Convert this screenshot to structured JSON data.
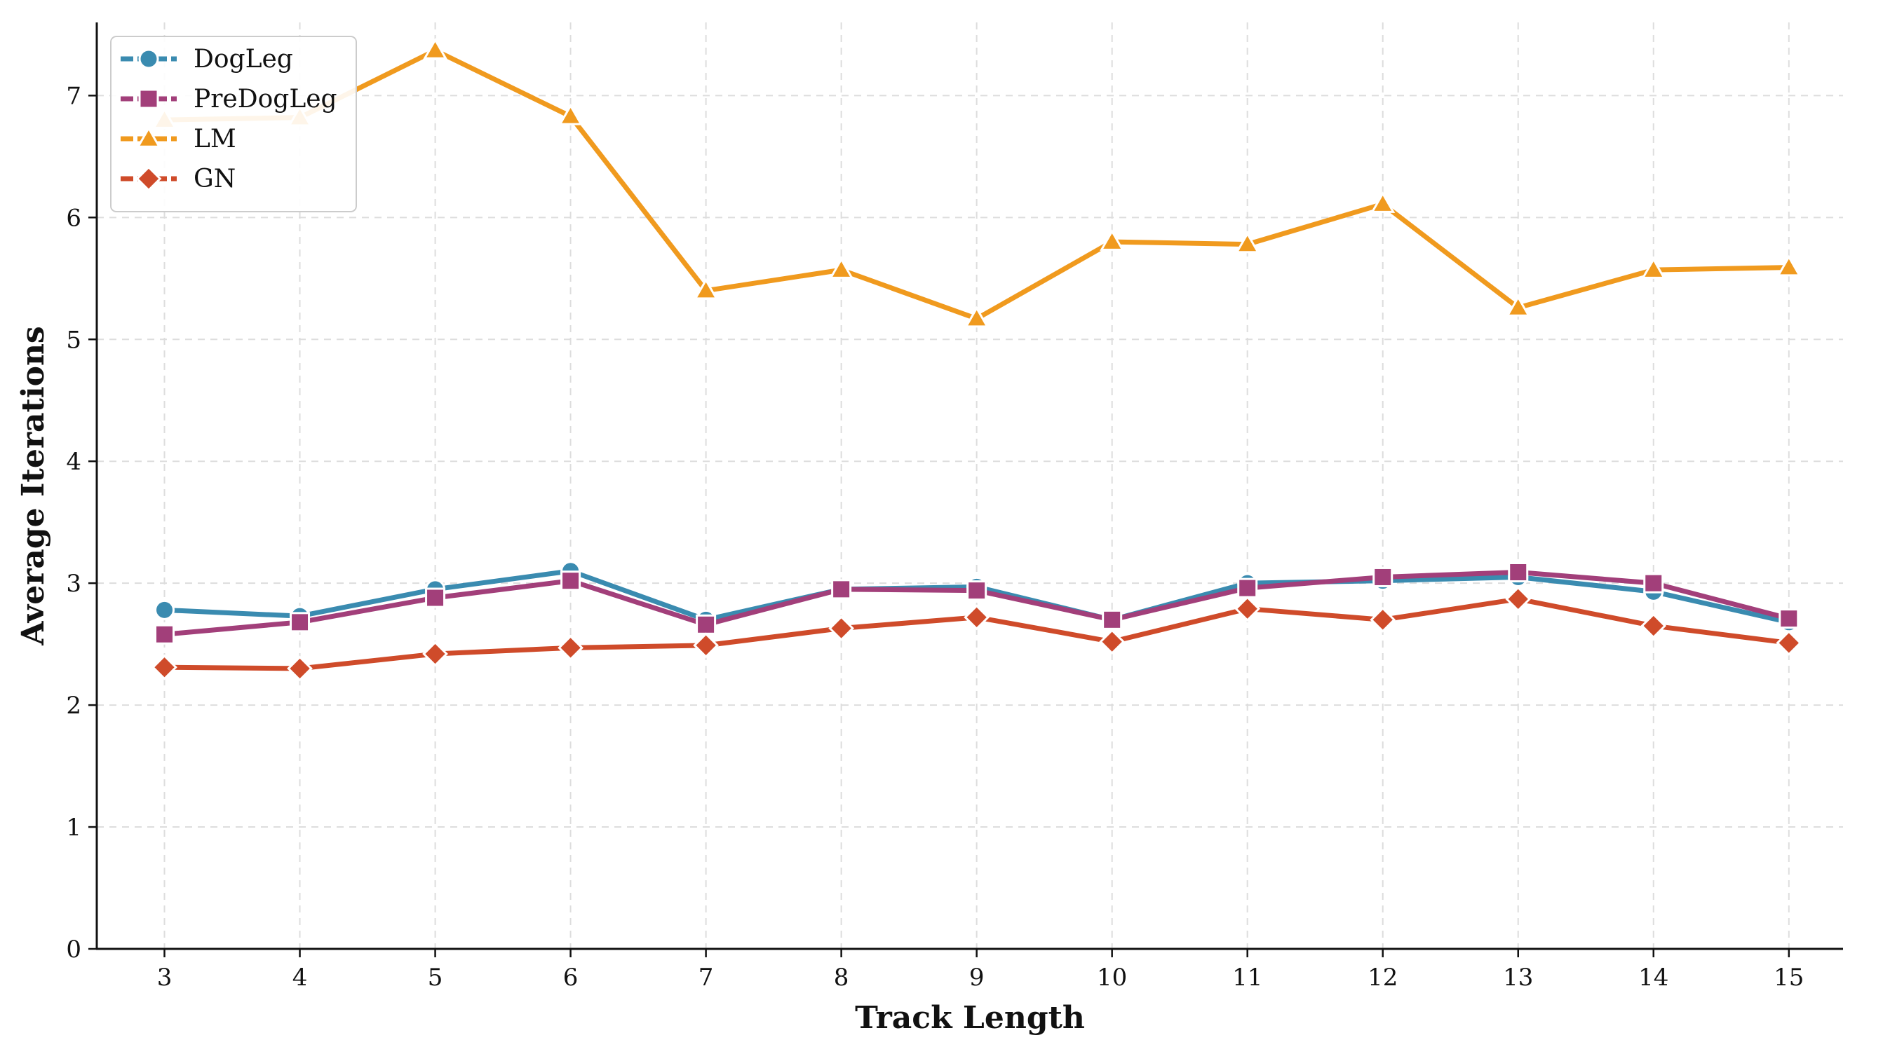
{
  "chart_data": {
    "type": "line",
    "title": "",
    "xlabel": "Track Length",
    "ylabel": "Average Iterations",
    "x": [
      3,
      4,
      5,
      6,
      7,
      8,
      9,
      10,
      11,
      12,
      13,
      14,
      15
    ],
    "xlim": [
      2.5,
      15.4
    ],
    "ylim": [
      0,
      7.6
    ],
    "yticks": [
      0,
      1,
      2,
      3,
      4,
      5,
      6,
      7
    ],
    "grid": true,
    "legend_position": "top-left",
    "series": [
      {
        "name": "DogLeg",
        "color": "#3a8bb0",
        "marker": "circle",
        "values": [
          2.78,
          2.73,
          2.95,
          3.1,
          2.7,
          2.95,
          2.97,
          2.7,
          3.0,
          3.02,
          3.05,
          2.93,
          2.68
        ]
      },
      {
        "name": "PreDogLeg",
        "color": "#a23f7a",
        "marker": "square",
        "values": [
          2.58,
          2.68,
          2.88,
          3.02,
          2.66,
          2.95,
          2.94,
          2.7,
          2.96,
          3.05,
          3.09,
          3.0,
          2.71
        ]
      },
      {
        "name": "LM",
        "color": "#f09a1e",
        "marker": "triangle",
        "values": [
          6.8,
          6.82,
          7.37,
          6.83,
          5.4,
          5.57,
          5.17,
          5.8,
          5.78,
          6.11,
          5.26,
          5.57,
          5.59
        ]
      },
      {
        "name": "GN",
        "color": "#cf4b2a",
        "marker": "diamond",
        "values": [
          2.31,
          2.3,
          2.42,
          2.47,
          2.49,
          2.63,
          2.72,
          2.52,
          2.79,
          2.7,
          2.87,
          2.65,
          2.51
        ]
      }
    ]
  }
}
